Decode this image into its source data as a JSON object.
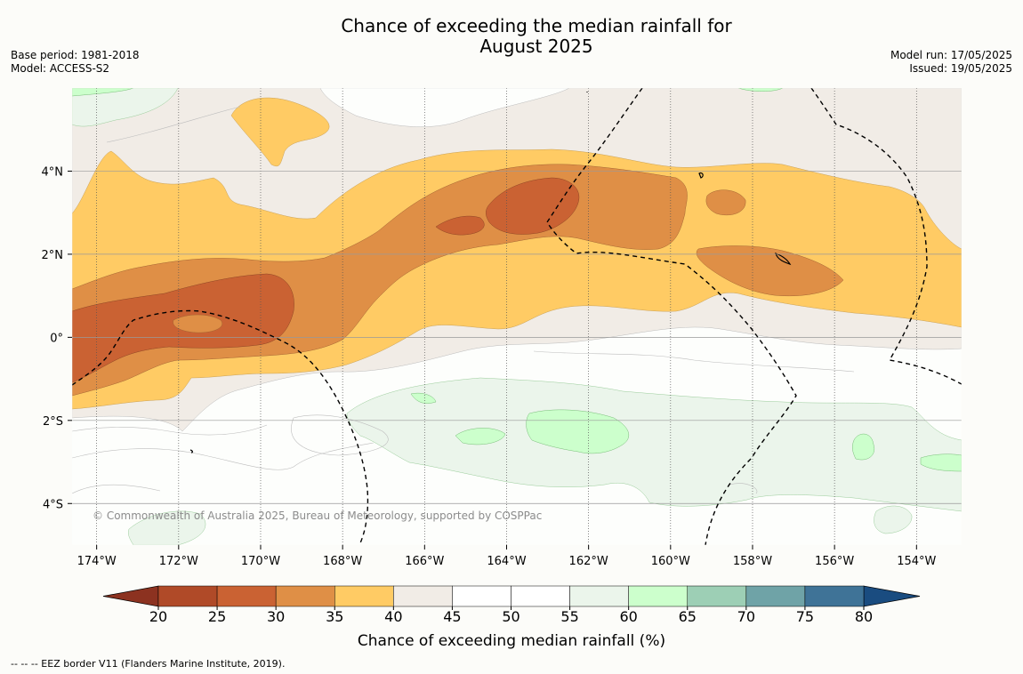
{
  "title": {
    "line1": "Chance of exceeding the median rainfall for",
    "line2": "August 2025"
  },
  "meta_left": {
    "base_period": "Base period: 1981-2018",
    "model": "Model: ACCESS-S2"
  },
  "meta_right": {
    "model_run": "Model run: 17/05/2025",
    "issued": "Issued: 19/05/2025"
  },
  "map": {
    "lon_range": [
      -174.6,
      -152.9
    ],
    "lat_range": [
      -5.0,
      6.0
    ],
    "lon_ticks": [
      {
        "value": -174,
        "label": "174°W"
      },
      {
        "value": -172,
        "label": "172°W"
      },
      {
        "value": -170,
        "label": "170°W"
      },
      {
        "value": -168,
        "label": "168°W"
      },
      {
        "value": -166,
        "label": "166°W"
      },
      {
        "value": -164,
        "label": "164°W"
      },
      {
        "value": -162,
        "label": "162°W"
      },
      {
        "value": -160,
        "label": "160°W"
      },
      {
        "value": -158,
        "label": "158°W"
      },
      {
        "value": -156,
        "label": "156°W"
      },
      {
        "value": -154,
        "label": "154°W"
      }
    ],
    "lat_ticks": [
      {
        "value": 4,
        "label": "4°N"
      },
      {
        "value": 2,
        "label": "2°N"
      },
      {
        "value": 0,
        "label": "0°"
      },
      {
        "value": -2,
        "label": "2°S"
      },
      {
        "value": -4,
        "label": "4°S"
      }
    ],
    "copyright": "© Commonwealth of Australia 2025, Bureau of Meteorology, supported by COSPPac"
  },
  "colorbar": {
    "ticks": [
      "20",
      "25",
      "30",
      "35",
      "40",
      "45",
      "50",
      "55",
      "60",
      "65",
      "70",
      "75",
      "80"
    ],
    "colors": [
      "#b04a28",
      "#ca6233",
      "#df8f46",
      "#ffcb64",
      "#f1ece6",
      "#ffffff",
      "#ffffff",
      "#ebf5eb",
      "#ccffcc",
      "#9dcfb5",
      "#6fa3a7",
      "#3f7397"
    ],
    "under_color": "#8c3220",
    "over_color": "#1a4c80",
    "label": "Chance of exceeding median rainfall (%)"
  },
  "footnote": "--  --  -- EEZ border V11 (Flanders Marine Institute, 2019)."
}
